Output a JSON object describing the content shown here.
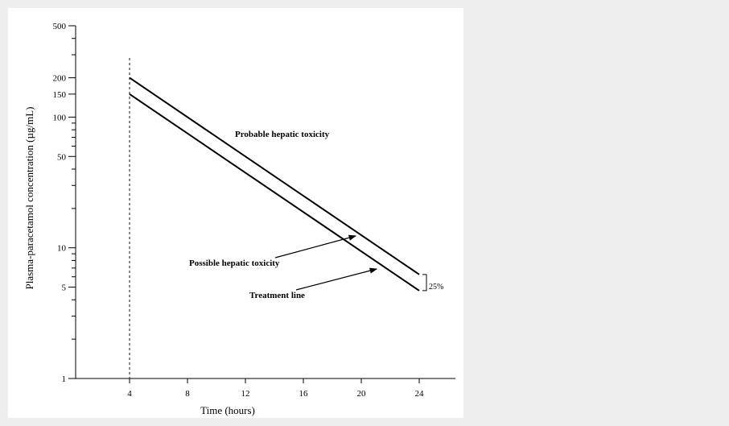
{
  "chart_data": {
    "type": "line",
    "xlabel": "Time (hours)",
    "ylabel": "Plasma-paracetamol concentration (µg/mL)",
    "yscale": "log",
    "xlim": [
      0,
      26.5
    ],
    "ylim": [
      1,
      500
    ],
    "x_ticks": [
      4,
      8,
      12,
      16,
      20,
      24
    ],
    "y_tick_labels": [
      1,
      5,
      10,
      50,
      100,
      150,
      200,
      500
    ],
    "y_minor_ticks": [
      2,
      3,
      4,
      6,
      7,
      8,
      9,
      20,
      30,
      40,
      60,
      70,
      80,
      90,
      300,
      400
    ],
    "grid": false,
    "series": [
      {
        "x": [
          4,
          24
        ],
        "y": [
          200,
          6.25
        ]
      },
      {
        "x": [
          4,
          24
        ],
        "y": [
          150,
          4.7
        ]
      }
    ],
    "reference_line_x": 4,
    "annotations": {
      "probable": "Probable hepatic toxicity",
      "possible": "Possible hepatic toxicity",
      "treatment": "Treatment line",
      "bracket": "25%"
    }
  }
}
